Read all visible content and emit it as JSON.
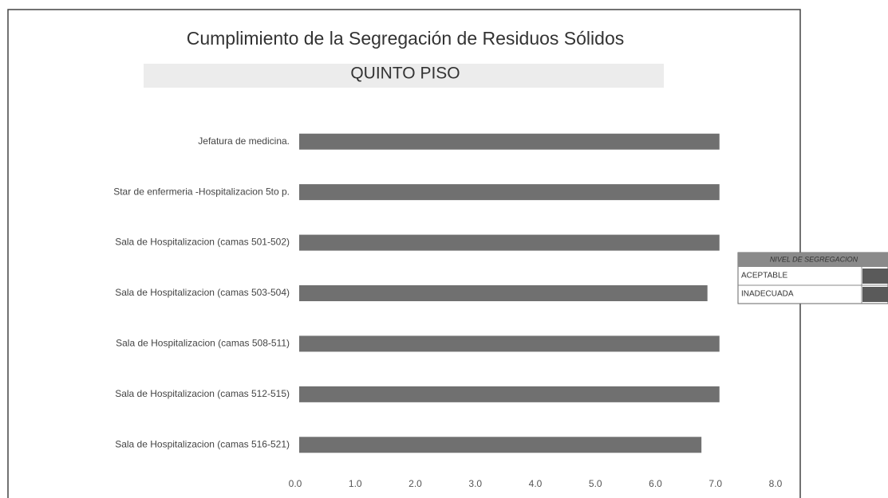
{
  "chart_data": {
    "type": "barh",
    "title": "Cumplimiento de la Segregación de Residuos Sólidos",
    "subtitle": "QUINTO PISO",
    "categories": [
      "Jefatura de medicina.",
      "Star de enfermeria -Hospitalizacion 5to p.",
      "Sala de Hospitalizacion (camas 501-502)",
      "Sala de Hospitalizacion (camas 503-504)",
      "Sala de Hospitalizacion (camas 508-511)",
      "Sala de Hospitalizacion (camas 512-515)",
      "Sala de Hospitalizacion (camas 516-521)"
    ],
    "values": [
      7.0,
      7.0,
      7.0,
      6.8,
      7.0,
      7.0,
      6.7
    ],
    "color": "#707070",
    "xlim": [
      0,
      8
    ],
    "xticks": [
      {
        "value": 0,
        "label": "0.0"
      },
      {
        "value": 1,
        "label": "1.0"
      },
      {
        "value": 2,
        "label": "2.0"
      },
      {
        "value": 3,
        "label": "3.0"
      },
      {
        "value": 4,
        "label": "4.0"
      },
      {
        "value": 5,
        "label": "5.0"
      },
      {
        "value": 6,
        "label": "6.0"
      },
      {
        "value": 7,
        "label": "7.0"
      },
      {
        "value": 8,
        "label": "8.0"
      }
    ],
    "grid": false,
    "legend": {
      "title": "NIVEL DE SEGREGACION",
      "items": [
        {
          "name": "ACEPTABLE",
          "color": "#5a5a5a"
        },
        {
          "name": "INADECUADA",
          "color": "#5a5a5a"
        }
      ]
    }
  }
}
